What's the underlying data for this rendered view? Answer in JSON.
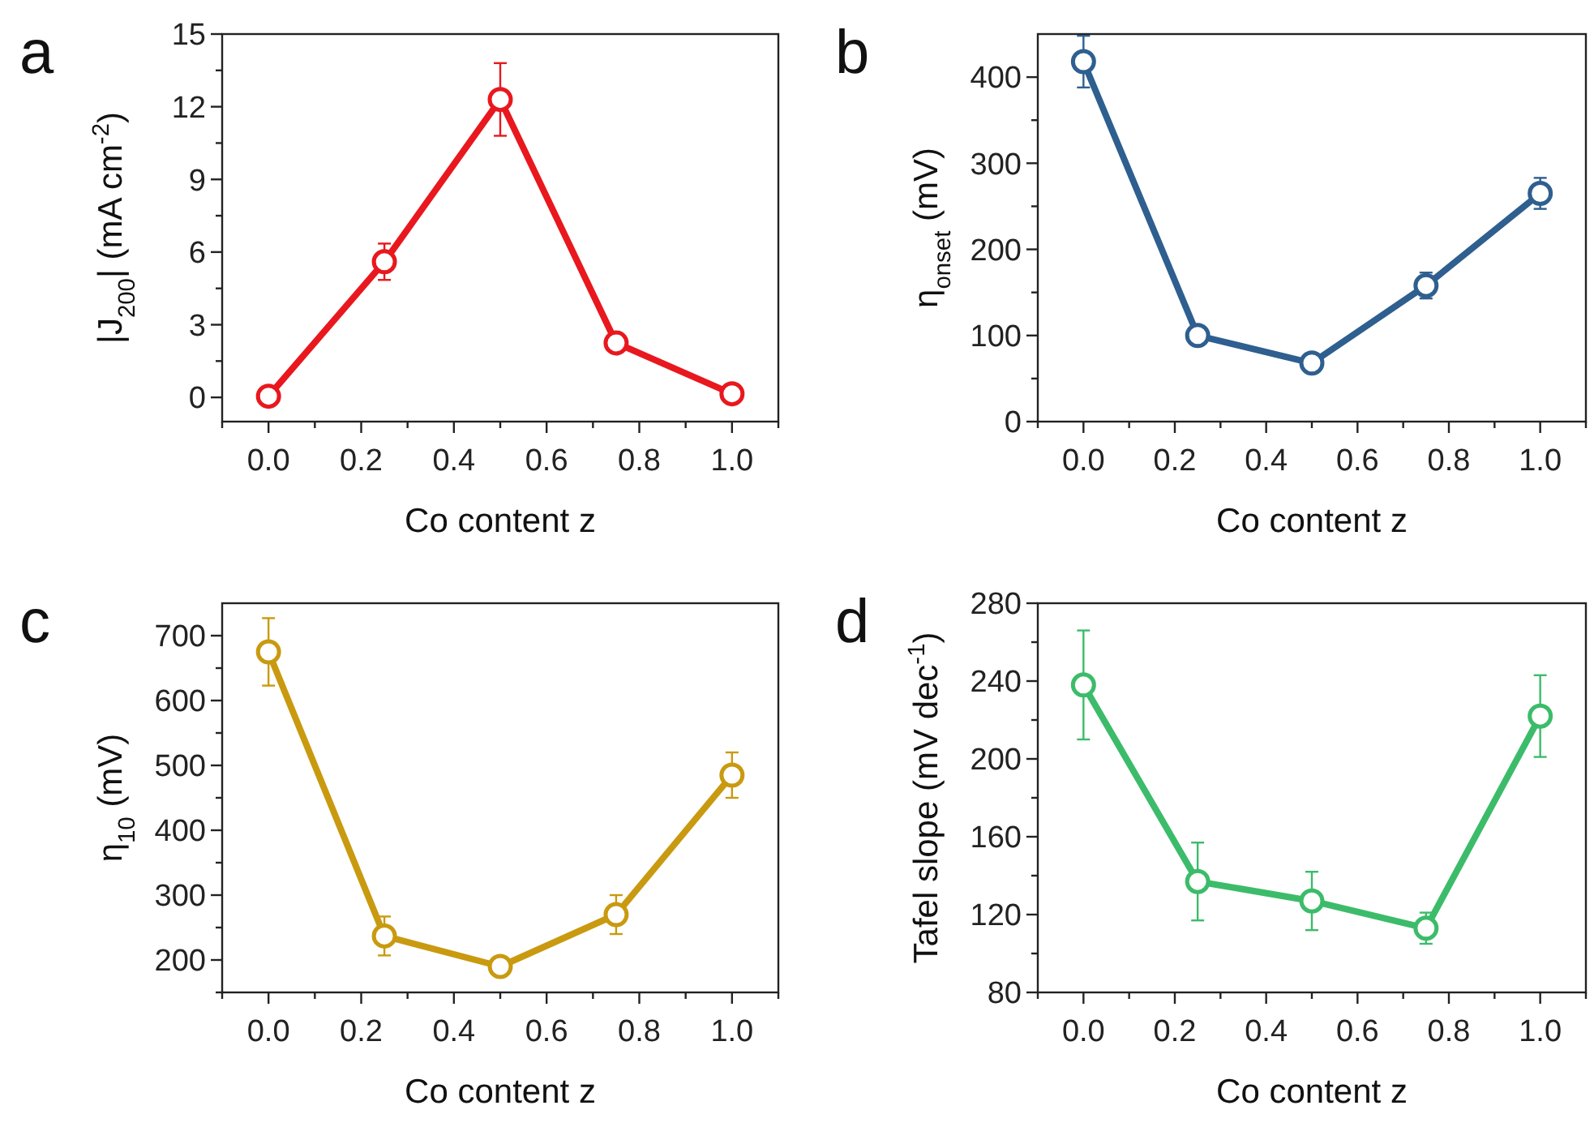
{
  "chart_data": [
    {
      "type": "line",
      "title": "a",
      "xlabel": "Co content z",
      "ylabel": "|J$_{200}$| (mA cm$^{-2}$)",
      "x": [
        0,
        0.25,
        0.5,
        0.75,
        1.0
      ],
      "series": [
        {
          "color": "#e8181e",
          "values": [
            0.05,
            5.6,
            12.3,
            2.25,
            0.15
          ],
          "errors": [
            0.3,
            0.75,
            1.5,
            0.2,
            0.2
          ]
        }
      ],
      "xlim": [
        -0.1,
        1.1
      ],
      "xticks": [
        {
          "value": -0.1,
          "label": null
        },
        {
          "value": 0,
          "label": "0.0"
        },
        {
          "value": 0.1,
          "label": null
        },
        {
          "value": 0.2,
          "label": "0.2"
        },
        {
          "value": 0.3,
          "label": null
        },
        {
          "value": 0.4,
          "label": "0.4"
        },
        {
          "value": 0.5,
          "label": null
        },
        {
          "value": 0.6,
          "label": "0.6"
        },
        {
          "value": 0.7,
          "label": null
        },
        {
          "value": 0.8,
          "label": "0.8"
        },
        {
          "value": 0.9,
          "label": null
        },
        {
          "value": 1.0,
          "label": "1.0"
        },
        {
          "value": 1.1,
          "label": null
        }
      ],
      "ylim": [
        -1,
        15
      ],
      "yticks": [
        0,
        {
          "value": 1.5,
          "label": null
        },
        3,
        {
          "value": 4.5,
          "label": null
        },
        6,
        {
          "value": 7.5,
          "label": null
        },
        9,
        {
          "value": 10.5,
          "label": null
        },
        12,
        {
          "value": 13.5,
          "label": null
        },
        15
      ],
      "marker": "circle",
      "line_style": "solid",
      "grid": false
    },
    {
      "type": "line",
      "title": "b",
      "xlabel": "Co content z",
      "ylabel": "η$_{onset}$ (mV)",
      "x": [
        0,
        0.25,
        0.5,
        0.75,
        1.0
      ],
      "series": [
        {
          "color": "#2e5f8f",
          "values": [
            418,
            100,
            68,
            158,
            265
          ],
          "errors": [
            30,
            5,
            5,
            15,
            18
          ]
        }
      ],
      "xlim": [
        -0.1,
        1.1
      ],
      "xticks": [
        {
          "value": -0.1,
          "label": null
        },
        {
          "value": 0,
          "label": "0.0"
        },
        {
          "value": 0.1,
          "label": null
        },
        {
          "value": 0.2,
          "label": "0.2"
        },
        {
          "value": 0.3,
          "label": null
        },
        {
          "value": 0.4,
          "label": "0.4"
        },
        {
          "value": 0.5,
          "label": null
        },
        {
          "value": 0.6,
          "label": "0.6"
        },
        {
          "value": 0.7,
          "label": null
        },
        {
          "value": 0.8,
          "label": "0.8"
        },
        {
          "value": 0.9,
          "label": null
        },
        {
          "value": 1.0,
          "label": "1.0"
        },
        {
          "value": 1.1,
          "label": null
        }
      ],
      "ylim": [
        0,
        450
      ],
      "yticks": [
        0,
        {
          "value": 50,
          "label": null
        },
        100,
        {
          "value": 150,
          "label": null
        },
        200,
        {
          "value": 250,
          "label": null
        },
        300,
        {
          "value": 350,
          "label": null
        },
        400
      ],
      "marker": "circle",
      "line_style": "solid",
      "grid": false
    },
    {
      "type": "line",
      "title": "c",
      "xlabel": "Co content z",
      "ylabel": "η$_{10}$ (mV)",
      "x": [
        0,
        0.25,
        0.5,
        0.75,
        1.0
      ],
      "series": [
        {
          "color": "#c99a10",
          "values": [
            675,
            237,
            190,
            270,
            485
          ],
          "errors": [
            52,
            30,
            null,
            30,
            35
          ]
        }
      ],
      "xlim": [
        -0.1,
        1.1
      ],
      "xticks": [
        {
          "value": -0.1,
          "label": null
        },
        {
          "value": 0,
          "label": "0.0"
        },
        {
          "value": 0.1,
          "label": null
        },
        {
          "value": 0.2,
          "label": "0.2"
        },
        {
          "value": 0.3,
          "label": null
        },
        {
          "value": 0.4,
          "label": "0.4"
        },
        {
          "value": 0.5,
          "label": null
        },
        {
          "value": 0.6,
          "label": "0.6"
        },
        {
          "value": 0.7,
          "label": null
        },
        {
          "value": 0.8,
          "label": "0.8"
        },
        {
          "value": 0.9,
          "label": null
        },
        {
          "value": 1.0,
          "label": "1.0"
        },
        {
          "value": 1.1,
          "label": null
        }
      ],
      "ylim": [
        150,
        750
      ],
      "yticks": [
        {
          "value": 150,
          "label": null
        },
        200,
        {
          "value": 250,
          "label": null
        },
        300,
        {
          "value": 350,
          "label": null
        },
        400,
        {
          "value": 450,
          "label": null
        },
        500,
        {
          "value": 550,
          "label": null
        },
        600,
        {
          "value": 650,
          "label": null
        },
        700
      ],
      "marker": "circle",
      "line_style": "solid",
      "grid": false
    },
    {
      "type": "line",
      "title": "d",
      "xlabel": "Co content z",
      "ylabel": "Tafel slope (mV dec$^{-1}$)",
      "x": [
        0,
        0.25,
        0.5,
        0.75,
        1.0
      ],
      "series": [
        {
          "color": "#3cbc6a",
          "values": [
            238,
            137,
            127,
            113,
            222
          ],
          "errors": [
            28,
            20,
            15,
            8,
            21
          ]
        }
      ],
      "xlim": [
        -0.1,
        1.1
      ],
      "xticks": [
        {
          "value": -0.1,
          "label": null
        },
        {
          "value": 0,
          "label": "0.0"
        },
        {
          "value": 0.1,
          "label": null
        },
        {
          "value": 0.2,
          "label": "0.2"
        },
        {
          "value": 0.3,
          "label": null
        },
        {
          "value": 0.4,
          "label": "0.4"
        },
        {
          "value": 0.5,
          "label": null
        },
        {
          "value": 0.6,
          "label": "0.6"
        },
        {
          "value": 0.7,
          "label": null
        },
        {
          "value": 0.8,
          "label": "0.8"
        },
        {
          "value": 0.9,
          "label": null
        },
        {
          "value": 1.0,
          "label": "1.0"
        },
        {
          "value": 1.1,
          "label": null
        }
      ],
      "ylim": [
        80,
        280
      ],
      "yticks": [
        80,
        {
          "value": 100,
          "label": null
        },
        120,
        {
          "value": 140,
          "label": null
        },
        160,
        {
          "value": 180,
          "label": null
        },
        200,
        {
          "value": 220,
          "label": null
        },
        240,
        {
          "value": 260,
          "label": null
        },
        280
      ],
      "marker": "circle",
      "line_style": "solid",
      "grid": false
    }
  ]
}
